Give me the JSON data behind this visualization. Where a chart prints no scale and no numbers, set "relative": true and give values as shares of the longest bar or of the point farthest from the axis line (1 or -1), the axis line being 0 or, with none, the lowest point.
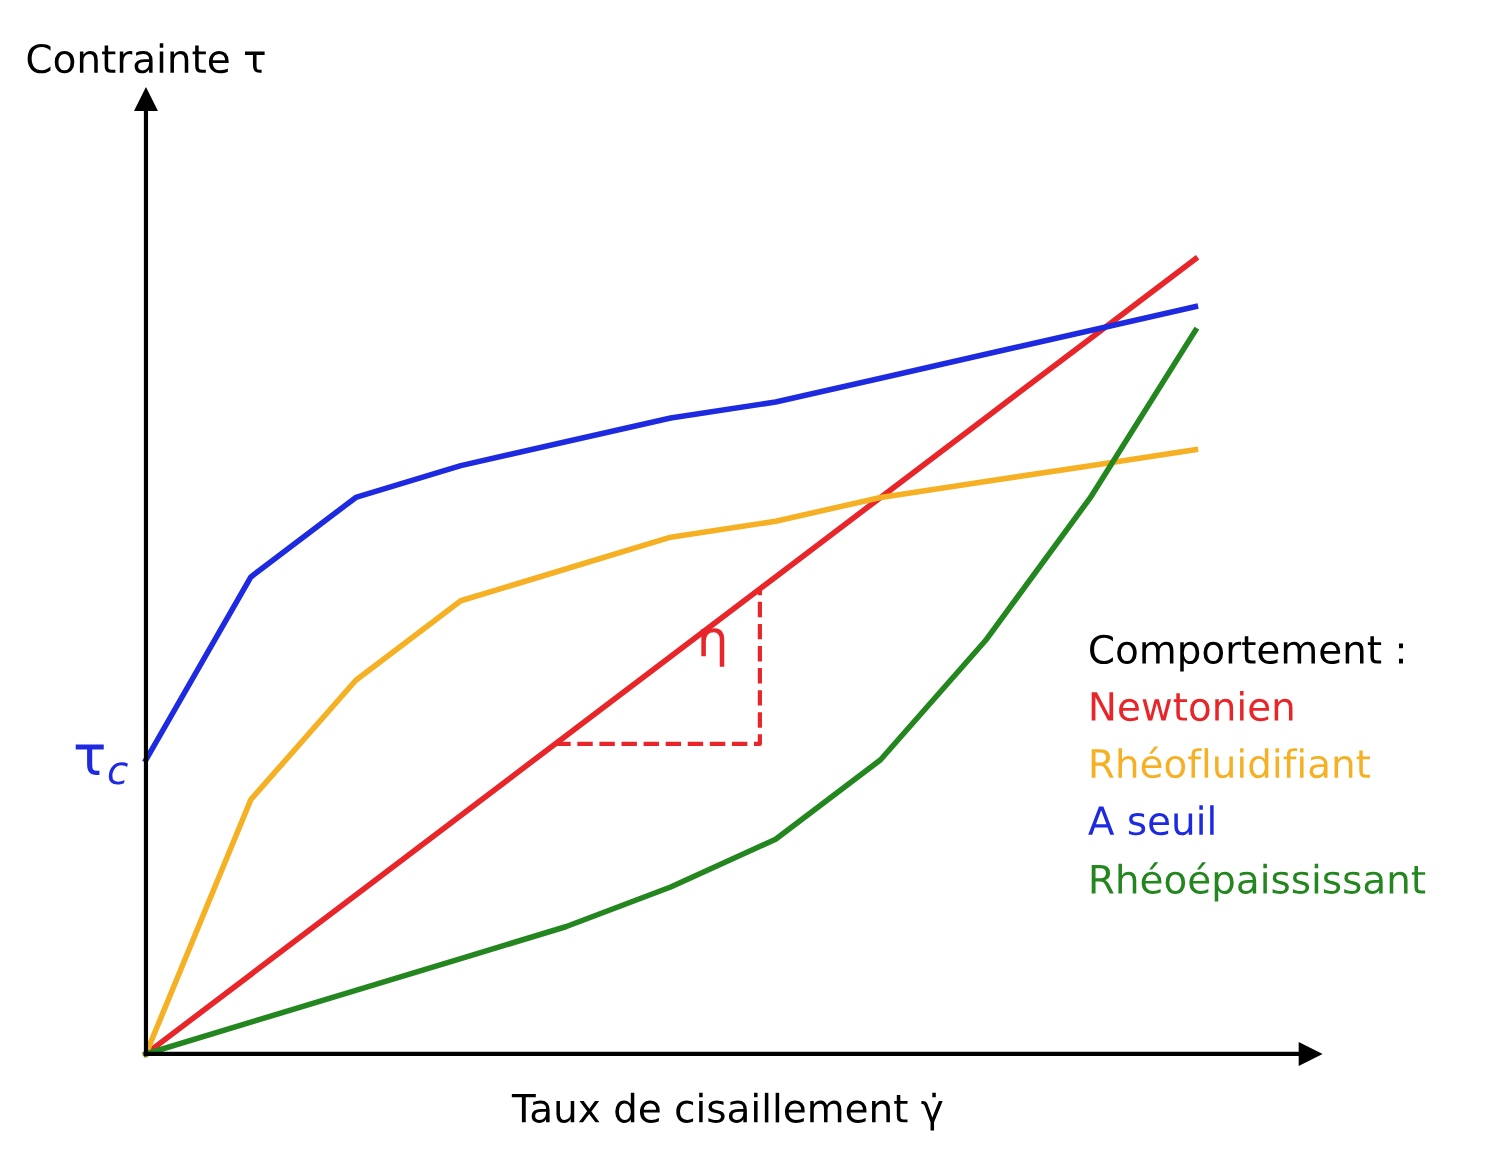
{
  "chart_data": {
    "type": "line",
    "relative": true,
    "xlabel": "Taux de cisaillement γ̇",
    "ylabel": "Contrainte τ",
    "legend_title": "Comportement :",
    "legend": "right",
    "grid": false,
    "marker": "none",
    "line_style": "solid",
    "categories": [
      null,
      null,
      null,
      null,
      null,
      null,
      null,
      null,
      null,
      null,
      null
    ],
    "series": [
      {
        "name": "Newtonien",
        "color": "#e8262a",
        "values": [
          0,
          0.1,
          0.2,
          0.3,
          0.4,
          0.5,
          0.6,
          0.7,
          0.8,
          0.9,
          1
        ]
      },
      {
        "name": "Rhéofluidifiant",
        "color": "#f5b024",
        "values": [
          0,
          0.32,
          0.47,
          0.57,
          0.61,
          0.65,
          0.67,
          0.7,
          0.72,
          0.74,
          0.76
        ]
      },
      {
        "name": "A seuil",
        "color": "#1d2ae0",
        "values": [
          0.37,
          0.6,
          0.7,
          0.74,
          0.77,
          0.8,
          0.82,
          0.85,
          0.88,
          0.91,
          0.94
        ]
      },
      {
        "name": "Rhéoépaississant",
        "color": "#23861e",
        "values": [
          0,
          0.04,
          0.08,
          0.12,
          0.16,
          0.21,
          0.27,
          0.37,
          0.52,
          0.7,
          0.91
        ]
      }
    ],
    "annotations": [
      "τ$_{c}$",
      "η"
    ]
  }
}
